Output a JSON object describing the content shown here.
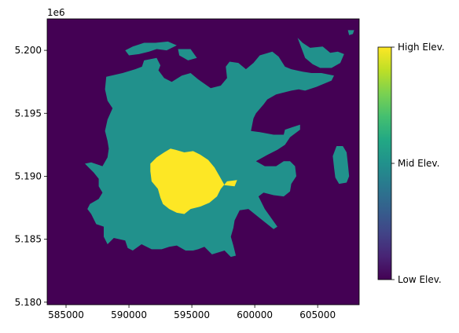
{
  "chart_data": {
    "type": "heatmap",
    "title": "",
    "xlabel": "",
    "ylabel": "",
    "y_offset_label": "1e6",
    "xlim": [
      583500,
      608300
    ],
    "ylim": [
      5179800,
      5202500
    ],
    "x_ticks": [
      {
        "value": 585000,
        "label": "585000"
      },
      {
        "value": 590000,
        "label": "590000"
      },
      {
        "value": 595000,
        "label": "595000"
      },
      {
        "value": 600000,
        "label": "600000"
      },
      {
        "value": 605000,
        "label": "605000"
      }
    ],
    "y_ticks": [
      {
        "value": 5180000,
        "label": "5.180"
      },
      {
        "value": 5185000,
        "label": "5.185"
      },
      {
        "value": 5190000,
        "label": "5.190"
      },
      {
        "value": 5195000,
        "label": "5.195"
      },
      {
        "value": 5200000,
        "label": "5.200"
      }
    ],
    "classes": [
      {
        "value": 0,
        "label": "Low Elev.",
        "color": "#440154"
      },
      {
        "value": 1,
        "label": "Mid Elev.",
        "color": "#21918c"
      },
      {
        "value": 2,
        "label": "High Elev.",
        "color": "#fde725"
      }
    ],
    "colorbar": {
      "min": 0,
      "max": 2,
      "ticks": [
        {
          "value": 0,
          "label": "Low Elev."
        },
        {
          "value": 1,
          "label": "Mid Elev."
        },
        {
          "value": 2,
          "label": "High Elev."
        }
      ]
    },
    "regions": {
      "mid": [
        [
          [
            588200,
            5197900
          ],
          [
            589500,
            5198200
          ],
          [
            590500,
            5198500
          ],
          [
            591300,
            5198800
          ],
          [
            592200,
            5198600
          ],
          [
            592800,
            5197800
          ],
          [
            593400,
            5197500
          ],
          [
            594200,
            5198000
          ],
          [
            594900,
            5198200
          ],
          [
            595500,
            5197700
          ],
          [
            596500,
            5197000
          ],
          [
            597300,
            5197200
          ],
          [
            597800,
            5197800
          ],
          [
            597700,
            5198700
          ],
          [
            598000,
            5199100
          ],
          [
            598700,
            5199000
          ],
          [
            599300,
            5198500
          ],
          [
            599900,
            5199000
          ],
          [
            600400,
            5199600
          ],
          [
            601400,
            5199900
          ],
          [
            601900,
            5199500
          ],
          [
            602400,
            5198700
          ],
          [
            602900,
            5198500
          ],
          [
            603800,
            5198300
          ],
          [
            604500,
            5198200
          ],
          [
            605300,
            5198200
          ],
          [
            606300,
            5198000
          ],
          [
            606100,
            5197600
          ],
          [
            604900,
            5197100
          ],
          [
            604000,
            5196800
          ],
          [
            603500,
            5196900
          ],
          [
            602900,
            5196800
          ],
          [
            601700,
            5196500
          ],
          [
            601000,
            5196100
          ],
          [
            600700,
            5195700
          ],
          [
            600100,
            5195000
          ],
          [
            599900,
            5194600
          ],
          [
            599700,
            5193600
          ],
          [
            600400,
            5193500
          ],
          [
            601500,
            5193300
          ],
          [
            602300,
            5193300
          ],
          [
            602400,
            5193700
          ],
          [
            603000,
            5193900
          ],
          [
            603600,
            5194100
          ],
          [
            603600,
            5193700
          ],
          [
            602800,
            5193100
          ],
          [
            602400,
            5192500
          ],
          [
            601800,
            5192100
          ],
          [
            601000,
            5191700
          ],
          [
            600100,
            5191200
          ],
          [
            600800,
            5190800
          ],
          [
            601700,
            5190800
          ],
          [
            602300,
            5191200
          ],
          [
            602800,
            5191200
          ],
          [
            603200,
            5190800
          ],
          [
            603300,
            5190000
          ],
          [
            602900,
            5189400
          ],
          [
            602800,
            5188800
          ],
          [
            602300,
            5188400
          ],
          [
            601500,
            5188500
          ],
          [
            600700,
            5188700
          ],
          [
            600300,
            5188400
          ],
          [
            600800,
            5187400
          ],
          [
            601800,
            5186000
          ],
          [
            601500,
            5185800
          ],
          [
            600500,
            5186600
          ],
          [
            599500,
            5187400
          ],
          [
            598800,
            5187300
          ],
          [
            598400,
            5186500
          ],
          [
            598300,
            5185900
          ],
          [
            598100,
            5185200
          ],
          [
            598300,
            5184500
          ],
          [
            598500,
            5183700
          ],
          [
            598100,
            5183600
          ],
          [
            597600,
            5184100
          ],
          [
            596600,
            5183800
          ],
          [
            596000,
            5184400
          ],
          [
            595500,
            5184200
          ],
          [
            595100,
            5184100
          ],
          [
            594500,
            5184100
          ],
          [
            593800,
            5184500
          ],
          [
            593200,
            5184400
          ],
          [
            592600,
            5184200
          ],
          [
            591800,
            5184200
          ],
          [
            591000,
            5184600
          ],
          [
            590300,
            5184100
          ],
          [
            589900,
            5184300
          ],
          [
            589700,
            5184900
          ],
          [
            588800,
            5185100
          ],
          [
            588300,
            5184600
          ],
          [
            588000,
            5185200
          ],
          [
            588000,
            5186000
          ],
          [
            587400,
            5186200
          ],
          [
            587000,
            5187000
          ],
          [
            586700,
            5187400
          ],
          [
            586900,
            5187800
          ],
          [
            587600,
            5188200
          ],
          [
            587900,
            5188700
          ],
          [
            587600,
            5189200
          ],
          [
            587600,
            5189800
          ],
          [
            587200,
            5190300
          ],
          [
            586800,
            5190700
          ],
          [
            586500,
            5191000
          ],
          [
            587000,
            5191100
          ],
          [
            587900,
            5190800
          ],
          [
            588300,
            5191500
          ],
          [
            588400,
            5192200
          ],
          [
            588300,
            5192800
          ],
          [
            588100,
            5193600
          ],
          [
            588300,
            5194500
          ],
          [
            588700,
            5195400
          ],
          [
            588300,
            5196000
          ],
          [
            588100,
            5196900
          ]
        ],
        [
          [
            589700,
            5200000
          ],
          [
            590300,
            5200300
          ],
          [
            591200,
            5200600
          ],
          [
            592100,
            5200600
          ],
          [
            593100,
            5200700
          ],
          [
            593800,
            5200400
          ],
          [
            593000,
            5200000
          ],
          [
            592200,
            5200100
          ],
          [
            591600,
            5199900
          ],
          [
            590800,
            5199700
          ],
          [
            590000,
            5199600
          ]
        ],
        [
          [
            591200,
            5199200
          ],
          [
            592200,
            5199400
          ],
          [
            592500,
            5198800
          ],
          [
            592100,
            5197800
          ],
          [
            591700,
            5197500
          ],
          [
            591400,
            5198000
          ],
          [
            591000,
            5198600
          ]
        ],
        [
          [
            593900,
            5200100
          ],
          [
            594900,
            5200100
          ],
          [
            595400,
            5199400
          ],
          [
            594700,
            5199200
          ],
          [
            594000,
            5199600
          ]
        ],
        [
          [
            603400,
            5201000
          ],
          [
            603800,
            5200600
          ],
          [
            604400,
            5200200
          ],
          [
            605400,
            5200300
          ],
          [
            606000,
            5199800
          ],
          [
            606600,
            5199900
          ],
          [
            607100,
            5199700
          ],
          [
            606800,
            5199000
          ],
          [
            606100,
            5198600
          ],
          [
            605200,
            5198600
          ],
          [
            604600,
            5198900
          ],
          [
            604000,
            5199400
          ],
          [
            603700,
            5200200
          ]
        ],
        [
          [
            607400,
            5201600
          ],
          [
            607900,
            5201600
          ],
          [
            607800,
            5201300
          ],
          [
            607500,
            5201200
          ]
        ],
        [
          [
            606500,
            5192400
          ],
          [
            607000,
            5192400
          ],
          [
            607300,
            5191900
          ],
          [
            607400,
            5191000
          ],
          [
            607500,
            5190000
          ],
          [
            607300,
            5189500
          ],
          [
            606700,
            5189400
          ],
          [
            606400,
            5189900
          ],
          [
            606300,
            5190700
          ],
          [
            606200,
            5191600
          ]
        ]
      ],
      "high": [
        [
          [
            592200,
            5191500
          ],
          [
            592800,
            5191900
          ],
          [
            593300,
            5192200
          ],
          [
            593700,
            5192100
          ],
          [
            594400,
            5191900
          ],
          [
            595100,
            5192000
          ],
          [
            595700,
            5191700
          ],
          [
            596300,
            5191300
          ],
          [
            596800,
            5190700
          ],
          [
            597200,
            5190000
          ],
          [
            597600,
            5189300
          ],
          [
            598400,
            5189200
          ],
          [
            598600,
            5189700
          ],
          [
            597800,
            5189600
          ],
          [
            597300,
            5189000
          ],
          [
            597000,
            5188400
          ],
          [
            596400,
            5187900
          ],
          [
            595700,
            5187600
          ],
          [
            594900,
            5187400
          ],
          [
            594400,
            5187000
          ],
          [
            593800,
            5187100
          ],
          [
            593200,
            5187400
          ],
          [
            592700,
            5187800
          ],
          [
            592500,
            5188300
          ],
          [
            592300,
            5189000
          ],
          [
            591800,
            5189600
          ],
          [
            591700,
            5190400
          ],
          [
            591700,
            5191000
          ]
        ]
      ]
    }
  }
}
